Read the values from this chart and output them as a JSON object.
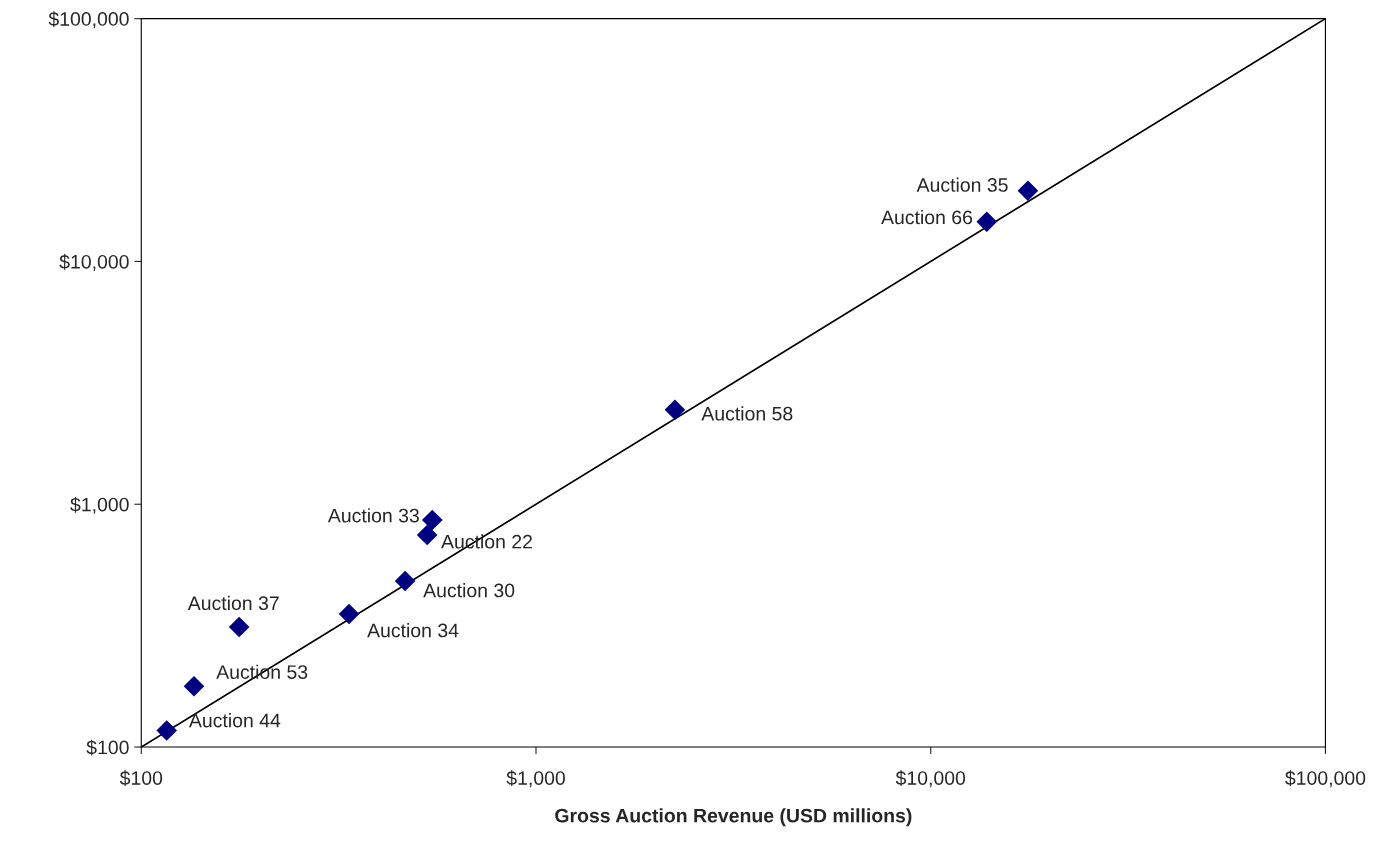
{
  "chart_data": {
    "type": "scatter",
    "xlabel": "Gross Auction Revenue (USD millions)",
    "log": "xy",
    "grid": false,
    "legend": false,
    "marker": "diamond",
    "xlim": [
      100,
      100000
    ],
    "ylim": [
      100,
      100000
    ],
    "xticks": [
      {
        "value": 100,
        "label": "$100"
      },
      {
        "value": 1000,
        "label": "$1,000"
      },
      {
        "value": 10000,
        "label": "$10,000"
      },
      {
        "value": 100000,
        "label": "$100,000"
      }
    ],
    "yticks": [
      {
        "value": 100,
        "label": "$100"
      },
      {
        "value": 1000,
        "label": "$1,000"
      },
      {
        "value": 10000,
        "label": "$10,000"
      },
      {
        "value": 100000,
        "label": "$100,000"
      }
    ],
    "series": [
      {
        "color": "#000080",
        "x": [
          116,
          136,
          177,
          336,
          466,
          530,
          546,
          2249,
          13870,
          17630
        ],
        "values": [
          117,
          178,
          312,
          353,
          483,
          747,
          861,
          2449,
          14560,
          19540
        ]
      },
      {
        "type": "line",
        "color": "#000000",
        "marker": "none",
        "x": [
          100,
          100000
        ],
        "values": [
          100,
          100000
        ]
      }
    ],
    "annotations": [
      {
        "text": "Auction 44",
        "x": 116,
        "y": 117
      },
      {
        "text": "Auction 53",
        "x": 136,
        "y": 178
      },
      {
        "text": "Auction 37",
        "x": 177,
        "y": 312
      },
      {
        "text": "Auction 34",
        "x": 336,
        "y": 353
      },
      {
        "text": "Auction 30",
        "x": 466,
        "y": 483
      },
      {
        "text": "Auction 22",
        "x": 530,
        "y": 747
      },
      {
        "text": "Auction 33",
        "x": 546,
        "y": 861
      },
      {
        "text": "Auction 58",
        "x": 2249,
        "y": 2449
      },
      {
        "text": "Auction 66",
        "x": 13870,
        "y": 14560
      },
      {
        "text": "Auction 35",
        "x": 17630,
        "y": 19540
      }
    ]
  }
}
